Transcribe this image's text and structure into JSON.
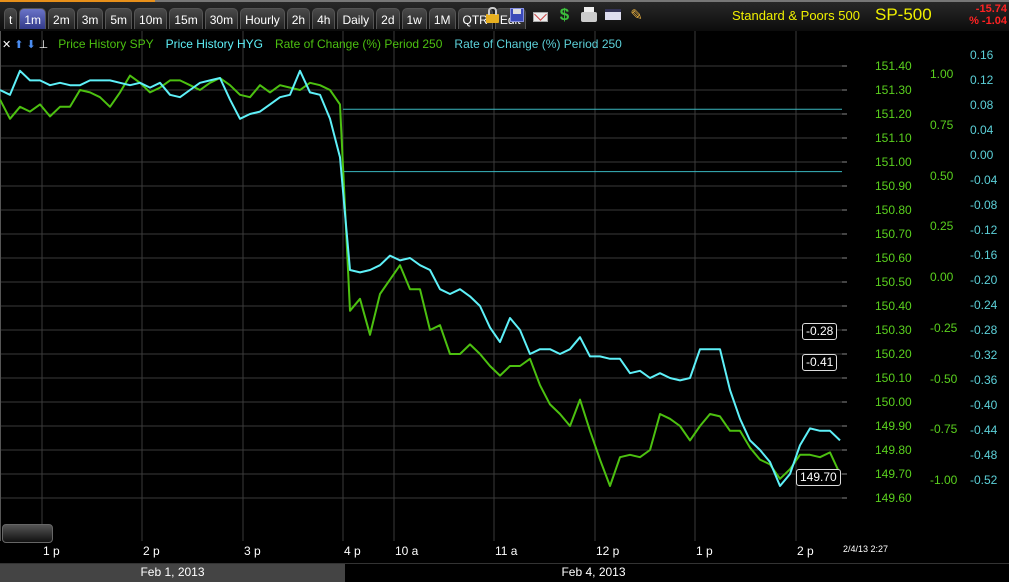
{
  "toolbar": {
    "tabs": [
      "t",
      "1m",
      "2m",
      "3m",
      "5m",
      "10m",
      "15m",
      "30m",
      "Hourly",
      "2h",
      "4h",
      "Daily",
      "2d",
      "1w",
      "1M",
      "QTR",
      "Edit"
    ],
    "active_tab": "1m",
    "icons": [
      "lock-icon",
      "save-icon",
      "mail-icon",
      "dollar-icon",
      "print-icon",
      "window-icon",
      "pencil-icon"
    ]
  },
  "symbol": {
    "name": "Standard & Poors 500",
    "ticker": "SP-500",
    "change": "-15.74",
    "change_pct": "% -1.04"
  },
  "legend": {
    "controls": [
      "✕",
      "⬆",
      "⬇",
      "⊥"
    ],
    "items": [
      {
        "label": "Price History SPY",
        "color": "#4cc010"
      },
      {
        "label": "Price History HYG",
        "color": "#5ef0f8"
      },
      {
        "label": "Rate of Change (%) Period 250",
        "color": "#4cc010"
      },
      {
        "label": "Rate of Change (%) Period 250",
        "color": "#5cd0d8"
      }
    ]
  },
  "colors": {
    "spy": "#4cc010",
    "hyg": "#5ef0f8",
    "grid": "#3a3a3a",
    "ref": "#3ab8c0"
  },
  "chart_data": {
    "type": "line",
    "x_tick_labels": [
      "1 p",
      "2 p",
      "3 p",
      "4 p",
      "10 a",
      "11 a",
      "12 p",
      "1 p",
      "2 p"
    ],
    "date_labels": [
      "Feb 1, 2013",
      "Feb 4, 2013"
    ],
    "timestamp": "2/4/13 2:27",
    "price_axis": {
      "ticks": [
        "151.40",
        "151.30",
        "151.20",
        "151.10",
        "151.00",
        "150.90",
        "150.80",
        "150.70",
        "150.60",
        "150.50",
        "150.40",
        "150.30",
        "150.20",
        "150.10",
        "150.00",
        "149.90",
        "149.80",
        "149.70",
        "149.60"
      ],
      "ylim": [
        149.6,
        151.4
      ]
    },
    "roc_axis_green": {
      "ticks": [
        "1.00",
        "0.75",
        "0.50",
        "0.25",
        "0.00",
        "-0.25",
        "-0.50",
        "-0.75",
        "-1.00"
      ]
    },
    "roc_axis_cyan": {
      "ticks": [
        "0.16",
        "0.12",
        "0.08",
        "0.04",
        "0.00",
        "-0.04",
        "-0.08",
        "-0.12",
        "-0.16",
        "-0.20",
        "-0.24",
        "-0.28",
        "-0.32",
        "-0.36",
        "-0.40",
        "-0.44",
        "-0.48",
        "-0.52"
      ]
    },
    "last_values": {
      "spy": "149.70",
      "roc_green": "-0.41",
      "roc_cyan": "-0.28"
    },
    "reference_lines": [
      151.22,
      150.96
    ],
    "grid": true,
    "series": [
      {
        "name": "Price History SPY",
        "values": [
          151.26,
          151.18,
          151.23,
          151.21,
          151.24,
          151.19,
          151.23,
          151.23,
          151.3,
          151.29,
          151.27,
          151.23,
          151.29,
          151.36,
          151.33,
          151.29,
          151.31,
          151.34,
          151.34,
          151.32,
          151.3,
          151.33,
          151.35,
          151.32,
          151.28,
          151.27,
          151.32,
          151.29,
          151.32,
          151.31,
          151.3,
          151.33,
          151.32,
          151.3,
          151.24,
          150.38,
          150.43,
          150.28,
          150.45,
          150.51,
          150.57,
          150.47,
          150.47,
          150.3,
          150.32,
          150.2,
          150.2,
          150.24,
          150.2,
          150.15,
          150.11,
          150.15,
          150.15,
          150.18,
          150.07,
          149.99,
          149.95,
          149.9,
          150.01,
          149.88,
          149.76,
          149.65,
          149.77,
          149.78,
          149.77,
          149.8,
          149.95,
          149.93,
          149.9,
          149.84,
          149.9,
          149.95,
          149.94,
          149.88,
          149.88,
          149.81,
          149.76,
          149.74,
          149.68,
          149.72,
          149.78,
          149.78,
          149.77,
          149.79,
          149.7
        ]
      },
      {
        "name": "Price History HYG",
        "values": [
          151.3,
          151.28,
          151.38,
          151.34,
          151.34,
          151.32,
          151.33,
          151.32,
          151.32,
          151.34,
          151.34,
          151.34,
          151.33,
          151.32,
          151.33,
          151.31,
          151.33,
          151.28,
          151.27,
          151.3,
          151.33,
          151.34,
          151.35,
          151.26,
          151.18,
          151.2,
          151.21,
          151.24,
          151.27,
          151.28,
          151.38,
          151.29,
          151.28,
          151.18,
          151.02,
          150.55,
          150.54,
          150.55,
          150.57,
          150.61,
          150.59,
          150.6,
          150.57,
          150.55,
          150.47,
          150.45,
          150.47,
          150.44,
          150.4,
          150.31,
          150.25,
          150.35,
          150.3,
          150.2,
          150.22,
          150.22,
          150.2,
          150.22,
          150.27,
          150.19,
          150.19,
          150.18,
          150.18,
          150.12,
          150.13,
          150.1,
          150.12,
          150.1,
          150.09,
          150.1,
          150.22,
          150.22,
          150.22,
          150.05,
          149.93,
          149.84,
          149.8,
          149.75,
          149.65,
          149.7,
          149.82,
          149.89,
          149.88,
          149.88,
          149.84
        ]
      }
    ]
  }
}
